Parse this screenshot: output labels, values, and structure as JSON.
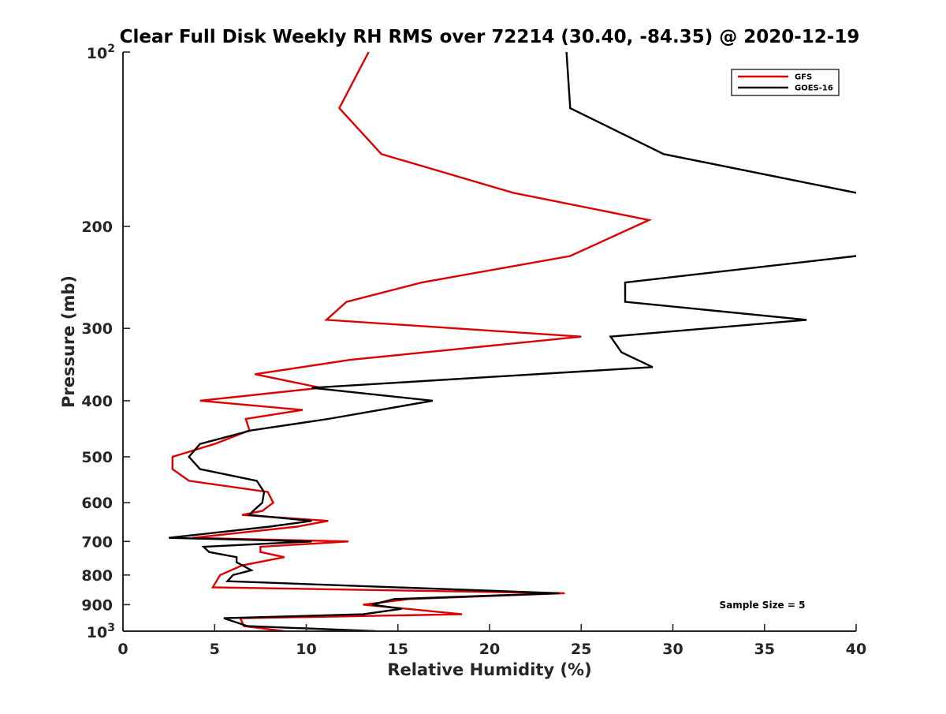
{
  "chart_data": {
    "type": "line",
    "title": "Clear Full Disk Weekly RH RMS over 72214 (30.40, -84.35) @ 2020-12-19",
    "xlabel": "Relative Humidity (%)",
    "ylabel": "Pressure (mb)",
    "xlim": [
      0,
      40
    ],
    "ylim": [
      100,
      1000
    ],
    "yscale": "log",
    "y_reversed": true,
    "grid": false,
    "legend_position": "top-right",
    "x_ticks": [
      0,
      5,
      10,
      15,
      20,
      25,
      30,
      35,
      40
    ],
    "x_tick_labels": [
      "0",
      "5",
      "10",
      "15",
      "20",
      "25",
      "30",
      "35",
      "40"
    ],
    "y_ticks": [
      100,
      200,
      300,
      400,
      500,
      600,
      700,
      800,
      900,
      1000
    ],
    "y_tick_labels": [
      {
        "base": "10",
        "exp": "2"
      },
      {
        "text": "200"
      },
      {
        "text": "300"
      },
      {
        "text": "400"
      },
      {
        "text": "500"
      },
      {
        "text": "600"
      },
      {
        "text": "700"
      },
      {
        "text": "800"
      },
      {
        "text": "900"
      },
      {
        "base": "10",
        "exp": "3"
      }
    ],
    "annotation": "Sample Size = 5",
    "series": [
      {
        "name": "GFS",
        "color": "#dd0000",
        "points": [
          [
            13.4,
            100
          ],
          [
            11.8,
            125
          ],
          [
            14.1,
            150
          ],
          [
            21.3,
            175
          ],
          [
            28.7,
            195
          ],
          [
            24.4,
            225
          ],
          [
            16.3,
            250
          ],
          [
            12.2,
            270
          ],
          [
            11.1,
            290
          ],
          [
            25.0,
            310
          ],
          [
            12.4,
            340
          ],
          [
            7.2,
            360
          ],
          [
            10.8,
            380
          ],
          [
            4.2,
            400
          ],
          [
            9.8,
            415
          ],
          [
            6.7,
            430
          ],
          [
            6.9,
            450
          ],
          [
            5.0,
            475
          ],
          [
            2.7,
            500
          ],
          [
            2.7,
            525
          ],
          [
            3.6,
            550
          ],
          [
            7.9,
            575
          ],
          [
            8.2,
            600
          ],
          [
            7.6,
            620
          ],
          [
            6.5,
            630
          ],
          [
            11.2,
            645
          ],
          [
            9.5,
            660
          ],
          [
            3.8,
            690
          ],
          [
            12.3,
            700
          ],
          [
            7.5,
            715
          ],
          [
            7.5,
            730
          ],
          [
            8.8,
            745
          ],
          [
            6.5,
            770
          ],
          [
            5.3,
            800
          ],
          [
            5.1,
            820
          ],
          [
            4.9,
            840
          ],
          [
            24.1,
            860
          ],
          [
            15.6,
            880
          ],
          [
            13.1,
            900
          ],
          [
            15.5,
            915
          ],
          [
            18.5,
            935
          ],
          [
            6.4,
            950
          ],
          [
            6.6,
            980
          ],
          [
            8.8,
            1000
          ]
        ]
      },
      {
        "name": "GOES-16",
        "color": "#000000",
        "points": [
          [
            24.2,
            100
          ],
          [
            24.4,
            125
          ],
          [
            29.5,
            150
          ],
          [
            40.0,
            175
          ],
          [
            null,
            200
          ],
          [
            40.0,
            225
          ],
          [
            27.4,
            250
          ],
          [
            27.4,
            270
          ],
          [
            37.3,
            290
          ],
          [
            26.6,
            310
          ],
          [
            27.2,
            330
          ],
          [
            28.9,
            350
          ],
          [
            10.3,
            380
          ],
          [
            16.9,
            400
          ],
          [
            11.2,
            430
          ],
          [
            7.0,
            450
          ],
          [
            4.2,
            475
          ],
          [
            3.6,
            500
          ],
          [
            4.2,
            525
          ],
          [
            7.3,
            550
          ],
          [
            7.7,
            575
          ],
          [
            7.6,
            600
          ],
          [
            7.1,
            620
          ],
          [
            6.9,
            630
          ],
          [
            10.3,
            645
          ],
          [
            8.0,
            660
          ],
          [
            2.5,
            690
          ],
          [
            10.3,
            700
          ],
          [
            4.4,
            715
          ],
          [
            4.7,
            730
          ],
          [
            6.2,
            745
          ],
          [
            6.2,
            760
          ],
          [
            7.0,
            785
          ],
          [
            6.0,
            800
          ],
          [
            5.7,
            820
          ],
          [
            23.8,
            860
          ],
          [
            14.8,
            880
          ],
          [
            13.6,
            900
          ],
          [
            15.2,
            915
          ],
          [
            13.1,
            935
          ],
          [
            5.5,
            950
          ],
          [
            6.8,
            980
          ],
          [
            13.8,
            1000
          ]
        ]
      }
    ]
  }
}
